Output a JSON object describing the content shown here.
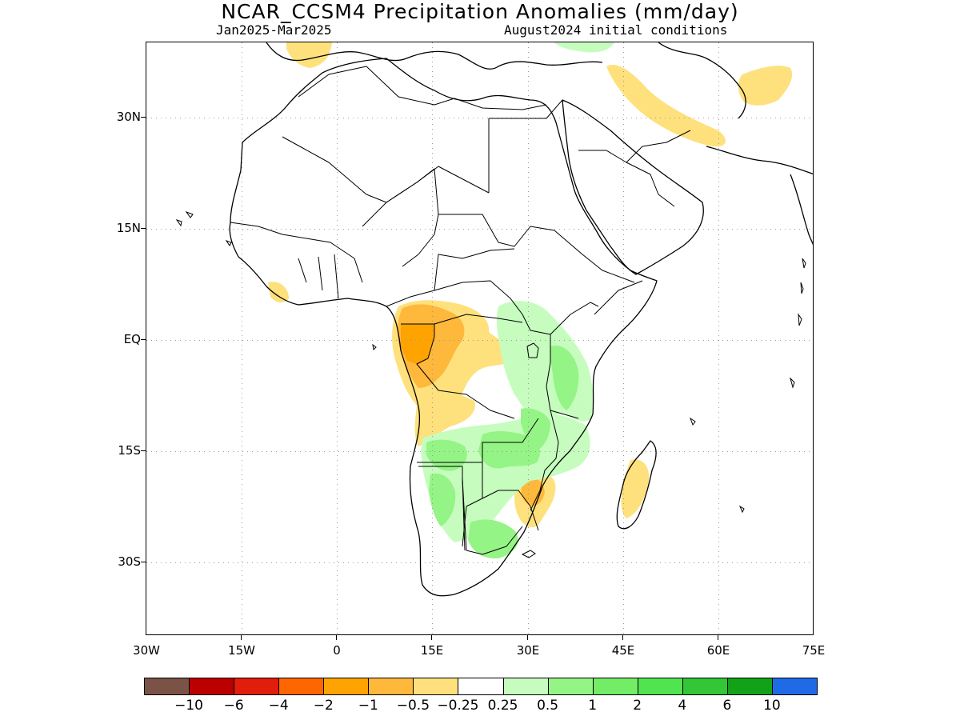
{
  "header": {
    "title": "NCAR_CCSM4 Precipitation Anomalies (mm/day)",
    "period": "Jan2025-Mar2025",
    "init": "August2024 initial conditions"
  },
  "axes": {
    "lat_labels": [
      "30N",
      "15N",
      "EQ",
      "15S",
      "30S"
    ],
    "lon_labels": [
      "30W",
      "15W",
      "0",
      "15E",
      "30E",
      "45E",
      "60E",
      "75E"
    ]
  },
  "colorbar": {
    "colors": [
      "#7a5246",
      "#bb0000",
      "#e01e0a",
      "#fd6600",
      "#fea300",
      "#feb83c",
      "#fee17c",
      "#ffffff",
      "#c6fdbf",
      "#94f485",
      "#73ec66",
      "#50e450",
      "#33c637",
      "#12a217",
      "#1f6be6"
    ],
    "labels": [
      "-10",
      "-6",
      "-4",
      "-2",
      "-1",
      "-0.5",
      "-0.25",
      "0.25",
      "0.5",
      "1",
      "2",
      "4",
      "6",
      "10"
    ]
  },
  "map_data": {
    "lon_range": [
      -30,
      75
    ],
    "lat_range": [
      -41,
      39
    ],
    "grid": "dotted",
    "colors": {
      "land_outline": "#000000",
      "dry": "#fee17c",
      "dry_mod": "#feb83c",
      "dry_strong": "#fea300",
      "wet": "#c6fdbf",
      "wet_mod": "#94f485",
      "wet_strong": "#73ec66"
    }
  }
}
